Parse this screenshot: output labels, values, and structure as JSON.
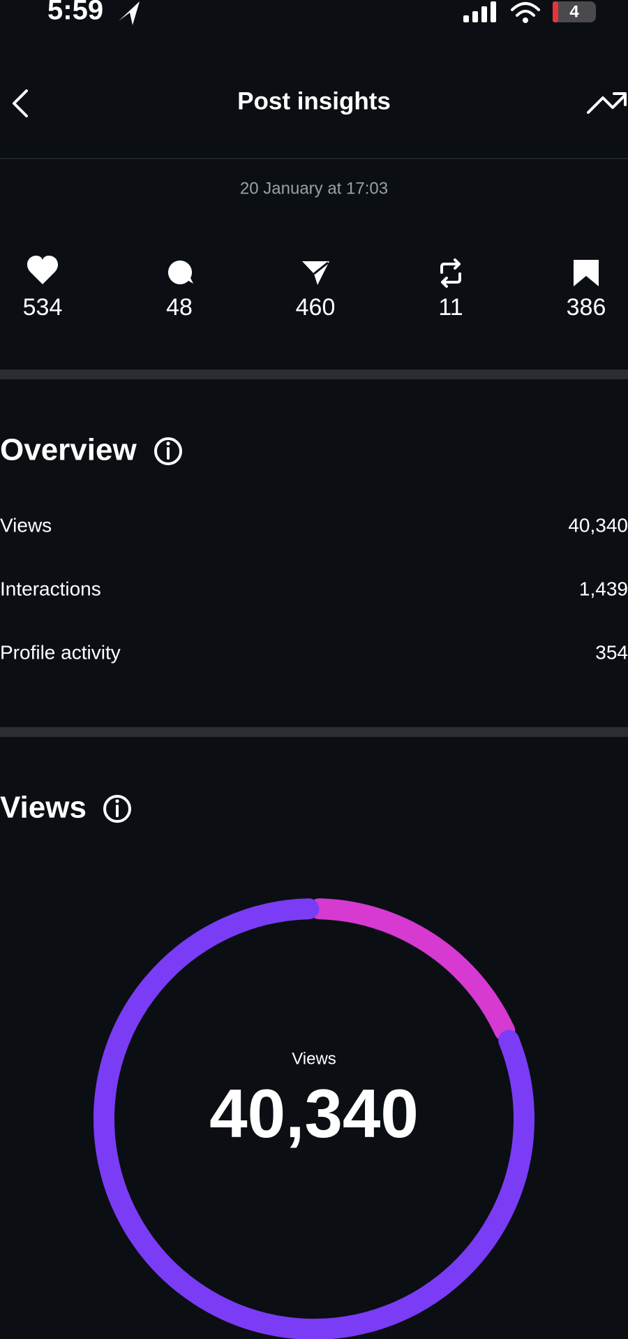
{
  "status_bar": {
    "time": "5:59",
    "battery": "4"
  },
  "header": {
    "title": "Post insights"
  },
  "date": "20 January at 17:03",
  "engagement_counts": [
    534,
    48,
    460,
    11,
    386
  ],
  "overview": {
    "title": "Overview",
    "rows": [
      {
        "label": "Views",
        "value": "40,340"
      },
      {
        "label": "Interactions",
        "value": "1,439"
      },
      {
        "label": "Profile activity",
        "value": "354"
      }
    ]
  },
  "views": {
    "title": "Views",
    "donut": {
      "label": "Views",
      "total": "40,340",
      "segments": [
        {
          "color": "#d63ad0",
          "share": 18.5
        },
        {
          "color": "#7b3cf6",
          "share": 81.5
        }
      ]
    }
  }
}
